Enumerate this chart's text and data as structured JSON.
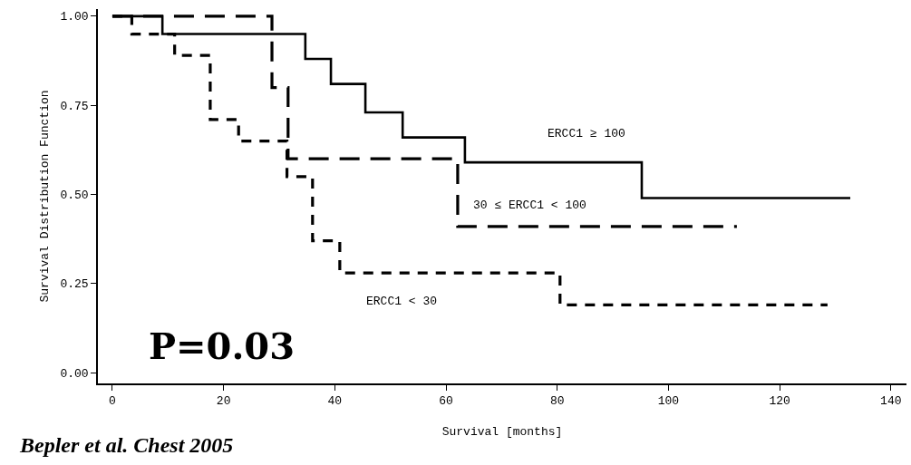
{
  "chart_data": {
    "type": "step",
    "xlabel": "Survival [months]",
    "ylabel": "Survival Distribution Function",
    "xlim": [
      -2.6,
      142.8
    ],
    "xticks": [
      0,
      20,
      40,
      60,
      80,
      100,
      120,
      140
    ],
    "ylim": [
      -0.03,
      1.02
    ],
    "yticks": [
      {
        "value": 0,
        "label": "0.00"
      },
      {
        "value": 0.25,
        "label": "0.25"
      },
      {
        "value": 0.5,
        "label": "0.50"
      },
      {
        "value": 0.75,
        "label": "0.75"
      },
      {
        "value": 1,
        "label": "1.00"
      }
    ],
    "legend": false,
    "marker": "none",
    "series": [
      {
        "name": "ERCC1 ≥ 100",
        "color": "#000000",
        "line_style": "solid",
        "x": [
          0,
          9.0,
          34.7,
          39.3,
          45.5,
          52.2,
          63.4,
          95.2,
          132.7
        ],
        "values": [
          1.0,
          0.95,
          0.88,
          0.81,
          0.73,
          0.66,
          0.59,
          0.49,
          0.49
        ]
      },
      {
        "name": "30 ≤ ERCC1 < 100",
        "color": "#000000",
        "line_style": "dashed",
        "x": [
          0,
          28.7,
          31.6,
          62.1,
          112.3
        ],
        "values": [
          1.0,
          0.8,
          0.6,
          0.41,
          0.41
        ]
      },
      {
        "name": "ERCC1 < 30",
        "color": "#000000",
        "line_style": "dashed",
        "x": [
          0,
          3.5,
          11.2,
          17.6,
          22.7,
          31.4,
          36.0,
          40.9,
          80.5,
          128.6
        ],
        "values": [
          1.0,
          0.95,
          0.89,
          0.71,
          0.65,
          0.55,
          0.37,
          0.28,
          0.19,
          0.19
        ]
      }
    ],
    "annotations": [
      "P=0.03",
      "Bepler et al. Chest 2005"
    ]
  }
}
